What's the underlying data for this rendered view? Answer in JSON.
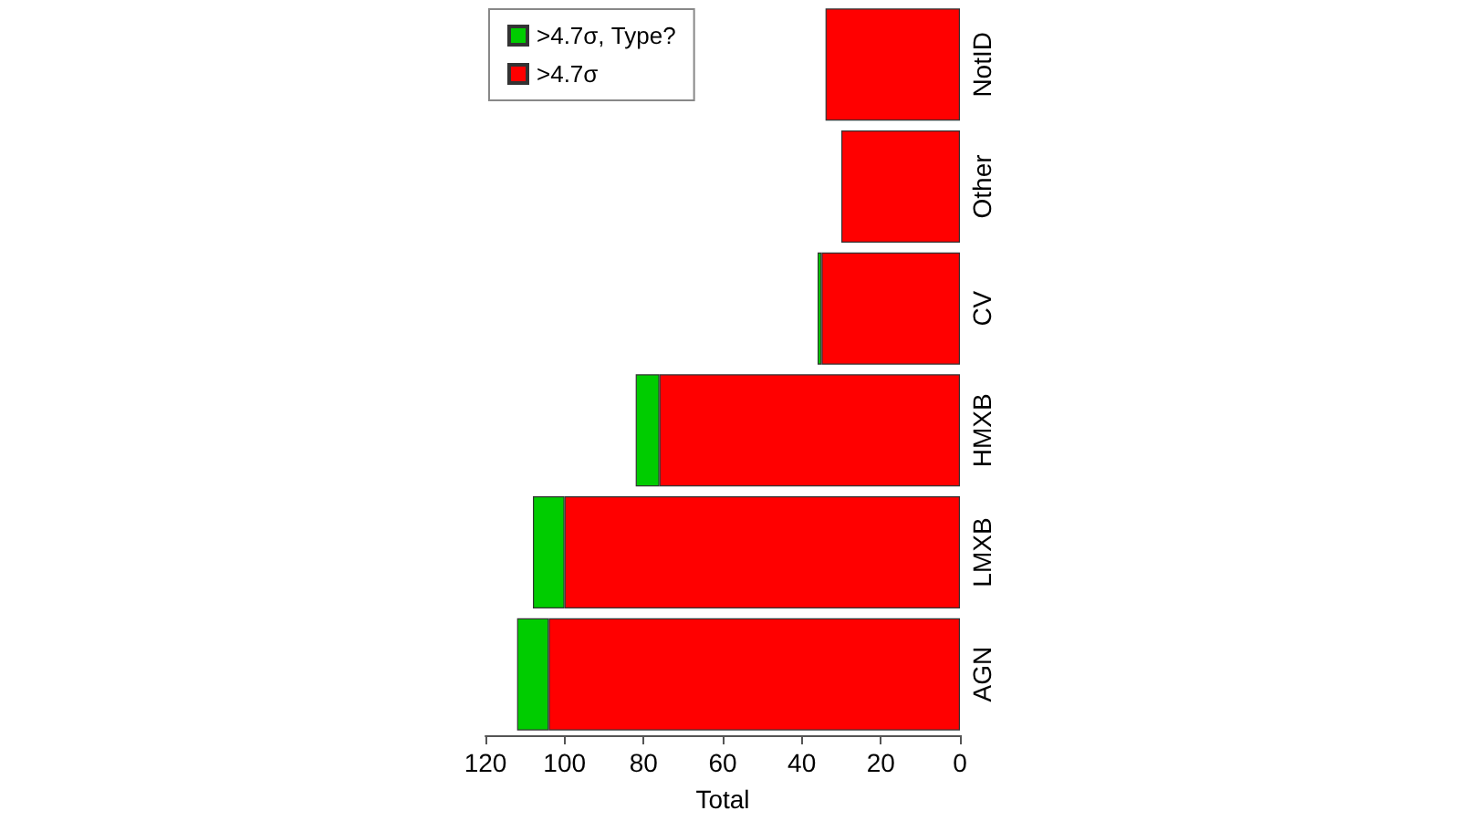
{
  "chart_data": {
    "type": "bar",
    "orientation": "horizontal",
    "xlabel": "Total",
    "categories": [
      "NotID",
      "Other",
      "CV",
      "HMXB",
      "LMXB",
      "AGN"
    ],
    "stacked": true,
    "series": [
      {
        "name": ">4.7σ",
        "color": "#ff0000",
        "values": [
          34,
          30,
          35,
          76,
          100,
          104
        ]
      },
      {
        "name": ">4.7σ, Type?",
        "color": "#00cc00",
        "values": [
          0,
          0,
          1,
          6,
          8,
          8
        ]
      }
    ],
    "xlim": [
      120,
      0
    ],
    "xticks": [
      120,
      100,
      80,
      60,
      40,
      20,
      0
    ],
    "grid": false,
    "legend": "top left"
  }
}
